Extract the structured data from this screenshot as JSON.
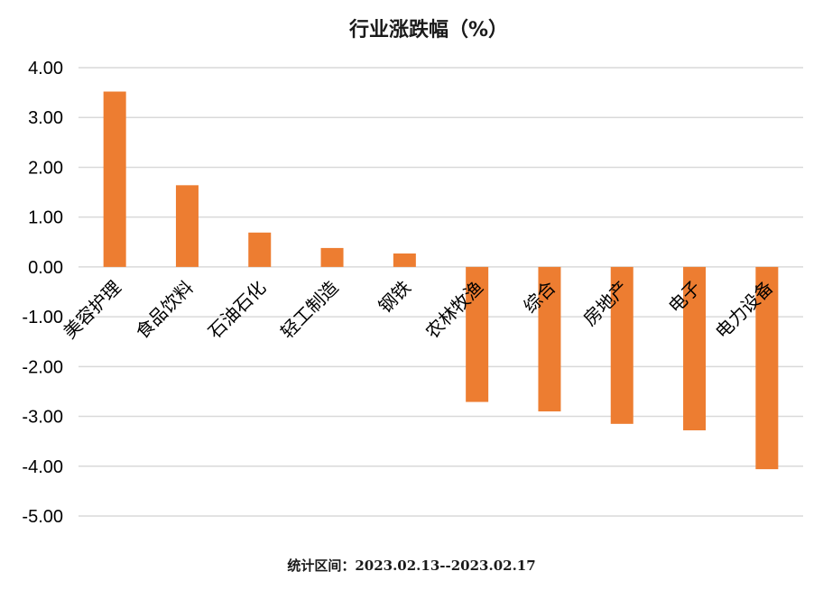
{
  "chart_data": {
    "type": "bar",
    "title": "行业涨跌幅（%）",
    "categories": [
      "美容护理",
      "食品饮料",
      "石油石化",
      "轻工制造",
      "钢铁",
      "农林牧渔",
      "综合",
      "房地产",
      "电子",
      "电力设备"
    ],
    "values": [
      3.52,
      1.64,
      0.69,
      0.38,
      0.27,
      -2.71,
      -2.9,
      -3.15,
      -3.28,
      -4.06
    ],
    "ylim": [
      -5.0,
      4.0
    ],
    "yticks": [
      "4.00",
      "3.00",
      "2.00",
      "1.00",
      "0.00",
      "-1.00",
      "-2.00",
      "-3.00",
      "-4.00",
      "-5.00"
    ],
    "xlabel": "",
    "ylabel": "",
    "grid": true,
    "legend": "none",
    "bar_color": "#ED7D31",
    "grid_color": "#D9D9D9"
  },
  "footnote": "统计区间：2023.02.13--2023.02.17"
}
